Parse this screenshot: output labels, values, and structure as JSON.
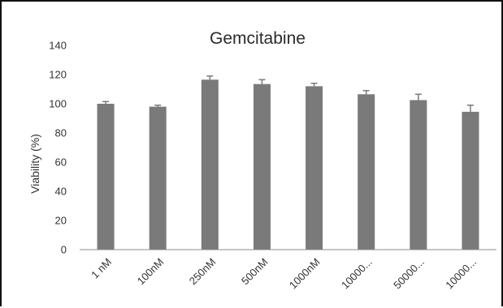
{
  "chart_data": {
    "type": "bar",
    "title": "Gemcitabine",
    "xlabel": "",
    "ylabel": "Viability (%)",
    "ylim": [
      0,
      140
    ],
    "yticks": [
      0,
      20,
      40,
      60,
      80,
      100,
      120,
      140
    ],
    "categories": [
      "1 nM",
      "100nM",
      "250nM",
      "500nM",
      "1000nM",
      "10000...",
      "50000...",
      "10000..."
    ],
    "values": [
      100,
      98,
      116.5,
      113.5,
      112,
      106.5,
      102.5,
      94.5
    ],
    "errors": [
      1.5,
      1,
      2.5,
      3,
      2,
      2.5,
      4,
      4.5
    ],
    "grid": false,
    "legend": "none",
    "bar_color": "#7a7a7a",
    "axis_color": "#8c8c8c"
  }
}
